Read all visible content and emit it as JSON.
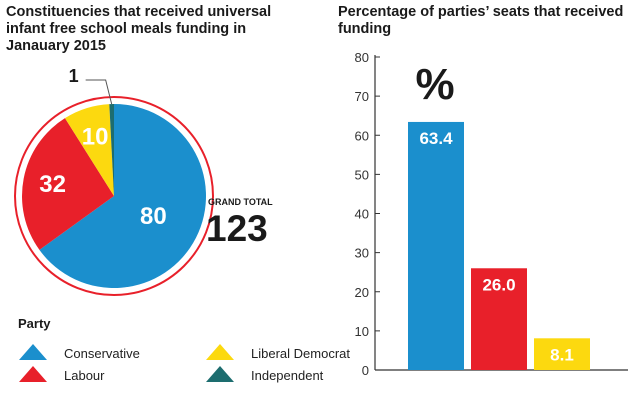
{
  "chart_data": [
    {
      "type": "pie",
      "title": "Constituencies that received universal infant free school meals funding in Janauary 2015",
      "slices": [
        {
          "label": "Conservative",
          "value": 80,
          "color": "#1b8fcd"
        },
        {
          "label": "Labour",
          "value": 32,
          "color": "#e8202a"
        },
        {
          "label": "Liberal Democrat",
          "value": 10,
          "color": "#fcd90f"
        },
        {
          "label": "Independent",
          "value": 1,
          "color": "#1d6d6f"
        }
      ],
      "annotations": {
        "total_label": "GRAND TOTAL",
        "total_value": "123",
        "callout_value": "1"
      }
    },
    {
      "type": "bar",
      "title": "Percentage of parties’ seats that received funding",
      "unit_label": "%",
      "categories": [
        "Conservative",
        "Labour",
        "Liberal Democrat"
      ],
      "values": [
        63.4,
        26.0,
        8.1
      ],
      "value_labels": [
        "63.4",
        "26.0",
        "8.1"
      ],
      "colors": [
        "#1b8fcd",
        "#e8202a",
        "#fcd90f"
      ],
      "ylim": [
        0,
        80
      ],
      "yticks": [
        0,
        10,
        20,
        30,
        40,
        50,
        60,
        70,
        80
      ]
    }
  ],
  "legend": {
    "title": "Party",
    "items": [
      {
        "label": "Conservative",
        "color": "#1b8fcd"
      },
      {
        "label": "Labour",
        "color": "#e8202a"
      },
      {
        "label": "Liberal Democrat",
        "color": "#fcd90f"
      },
      {
        "label": "Independent",
        "color": "#1d6d6f"
      }
    ]
  }
}
